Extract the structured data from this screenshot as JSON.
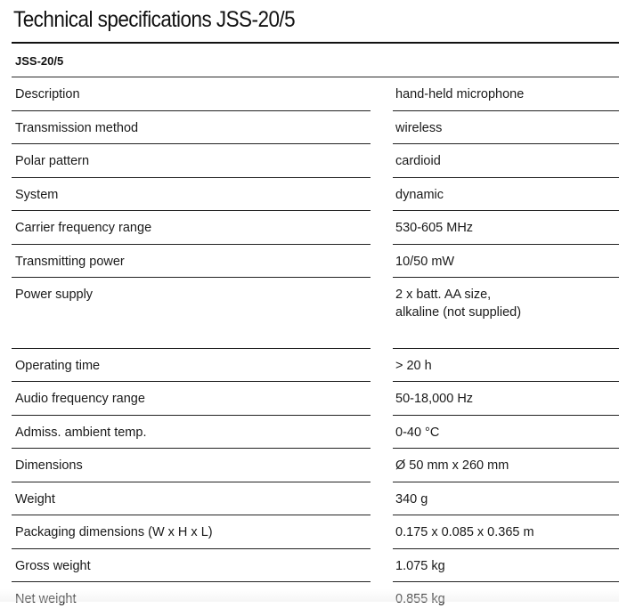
{
  "page": {
    "title": "Technical specifications JSS-20/5"
  },
  "table": {
    "model": "JSS-20/5",
    "rows": [
      {
        "label": "Description",
        "value": "hand-held microphone"
      },
      {
        "label": "Transmission method",
        "value": "wireless"
      },
      {
        "label": "Polar pattern",
        "value": "cardioid"
      },
      {
        "label": "System",
        "value": "dynamic"
      },
      {
        "label": "Carrier frequency range",
        "value": "530-605 MHz"
      },
      {
        "label": "Transmitting power",
        "value": "10/50 mW"
      },
      {
        "label": "Power supply",
        "value": "2 x batt. AA size,\nalkaline (not supplied)"
      },
      {
        "label": "Operating time",
        "value": "> 20 h"
      },
      {
        "label": "Audio frequency range",
        "value": "50-18,000 Hz"
      },
      {
        "label": "Admiss. ambient temp.",
        "value": "0-40 °C"
      },
      {
        "label": "Dimensions",
        "value": "Ø 50 mm x 260 mm"
      },
      {
        "label": "Weight",
        "value": "340 g"
      },
      {
        "label": "Packaging dimensions (W x H x L)",
        "value": "0.175 x 0.085 x 0.365 m"
      },
      {
        "label": "Gross weight",
        "value": "1.075 kg"
      },
      {
        "label": "Net weight",
        "value": "0.855 kg"
      }
    ]
  }
}
